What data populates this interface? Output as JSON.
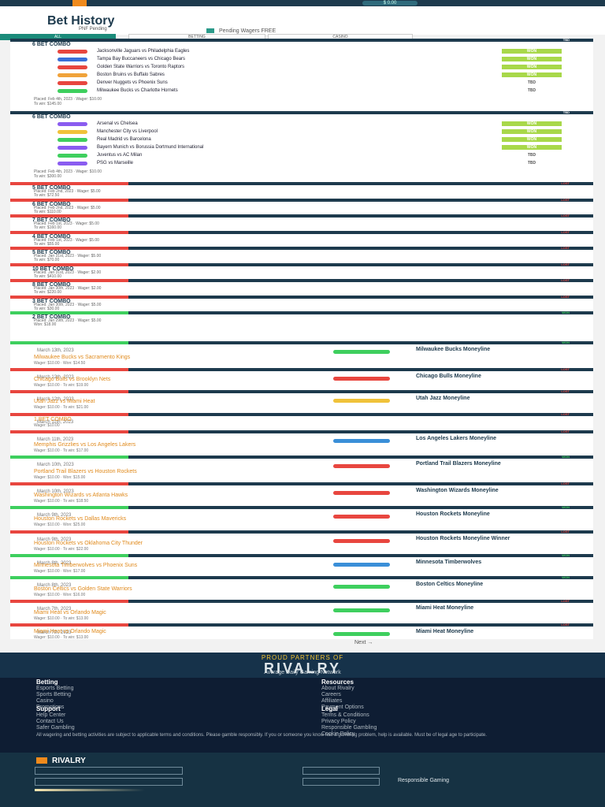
{
  "topbar": {
    "logo": "R",
    "balance": "$ 0.00",
    "colors": [
      "#f08a1c",
      "#d9534f",
      "#e74c3c"
    ]
  },
  "page": {
    "title": "Bet History",
    "pending_label": "PNF Pending",
    "wager_label": "Pending Wagers",
    "wager_value": "FREE"
  },
  "tabs": [
    {
      "label": "ALL"
    },
    {
      "label": "BETTING"
    },
    {
      "label": "CASINO"
    }
  ],
  "parlays": [
    {
      "title": "6 BET COMBO",
      "result": "TBD",
      "state": "pend",
      "legs": [
        {
          "text": "Jacksonville Jaguars vs Philadelphia Eagles",
          "status": "WON",
          "color": "#e8463f"
        },
        {
          "text": "Tampa Bay Buccaneers vs Chicago Bears",
          "status": "WON",
          "color": "#3a6fd8"
        },
        {
          "text": "Golden State Warriors vs Toronto Raptors",
          "status": "WON",
          "color": "#e8463f"
        },
        {
          "text": "Boston Bruins vs Buffalo Sabres",
          "status": "WON",
          "color": "#f0a23a"
        },
        {
          "text": "Denver Nuggets vs Phoenix Suns",
          "status": "TBD",
          "color": "#e8463f"
        },
        {
          "text": "Milwaukee Bucks vs Charlotte Hornets",
          "status": "TBD",
          "color": "#3ecf5e"
        }
      ],
      "meta1": "Placed: Feb 4th, 2023 · Wager: $10.00",
      "meta2": "To win: $145.00"
    },
    {
      "title": "6 BET COMBO",
      "result": "TBD",
      "state": "pend",
      "legs": [
        {
          "text": "Arsenal vs Chelsea",
          "status": "WON",
          "color": "#8a5cf0"
        },
        {
          "text": "Manchester City vs Liverpool",
          "status": "WON",
          "color": "#f0c23a"
        },
        {
          "text": "Real Madrid vs Barcelona",
          "status": "WON",
          "color": "#3ecf5e"
        },
        {
          "text": "Bayern Munich vs Borussia Dortmund International",
          "status": "WON",
          "color": "#8a5cf0"
        },
        {
          "text": "Juventus vs AC Milan",
          "status": "TBD",
          "color": "#3ecf5e"
        },
        {
          "text": "PSG vs Marseille",
          "status": "TBD",
          "color": "#8a5cf0"
        }
      ],
      "meta1": "Placed: Feb 4th, 2023 · Wager: $10.00",
      "meta2": "To win: $300.00"
    }
  ],
  "combos": [
    {
      "title": "5 BET COMBO",
      "result": "LOST",
      "state": "lost",
      "meta1": "Placed: Feb 2nd, 2023 · Wager: $5.00",
      "meta2": "To win: $72.50"
    },
    {
      "title": "6 BET COMBO",
      "result": "LOST",
      "state": "lost",
      "meta1": "Placed: Feb 2nd, 2023 · Wager: $5.00",
      "meta2": "To win: $110.00"
    },
    {
      "title": "7 BET COMBO",
      "result": "LOST",
      "state": "lost",
      "meta1": "Placed: Feb 1st, 2023 · Wager: $5.00",
      "meta2": "To win: $160.00"
    },
    {
      "title": "4 BET COMBO",
      "result": "LOST",
      "state": "lost",
      "meta1": "Placed: Feb 1st, 2023 · Wager: $5.00",
      "meta2": "To win: $55.00"
    },
    {
      "title": "5 BET COMBO",
      "result": "LOST",
      "state": "lost",
      "meta1": "Placed: Jan 31st, 2023 · Wager: $5.00",
      "meta2": "To win: $70.00"
    },
    {
      "title": "10 BET COMBO",
      "result": "LOST",
      "state": "lost",
      "meta1": "Placed: Jan 31st, 2023 · Wager: $2.00",
      "meta2": "To win: $410.00"
    },
    {
      "title": "8 BET COMBO",
      "result": "LOST",
      "state": "lost",
      "meta1": "Placed: Jan 30th, 2023 · Wager: $2.00",
      "meta2": "To win: $220.00"
    },
    {
      "title": "3 BET COMBO",
      "result": "LOST",
      "state": "lost",
      "meta1": "Placed: Jan 30th, 2023 · Wager: $5.00",
      "meta2": "To win: $30.00"
    },
    {
      "title": "2 BET COMBO",
      "result": "WON",
      "state": "won",
      "meta1": "Placed: Jan 29th, 2023 · Wager: $5.00",
      "meta2": "Won: $18.00"
    }
  ],
  "singles": [
    {
      "flag": "WON",
      "state": "won",
      "date": "March 13th, 2023",
      "badge": "#3ecf5e",
      "pick": "Milwaukee Bucks Moneyline",
      "team": "Milwaukee Bucks vs Sacramento Kings",
      "foot": "Wager: $10.00 · Won: $14.50"
    },
    {
      "flag": "LOST",
      "state": "lost",
      "date": "March 12th, 2023",
      "badge": "#e8463f",
      "pick": "Chicago Bulls Moneyline",
      "team": "Chicago Bulls vs Brooklyn Nets",
      "foot": "Wager: $10.00 · To win: $19.00"
    },
    {
      "flag": "LOST",
      "state": "lost",
      "date": "March 12th, 2023",
      "badge": "#f0c23a",
      "pick": "Utah Jazz Moneyline",
      "team": "Utah Jazz vs Miami Heat",
      "foot": "Wager: $10.00 · To win: $21.00"
    },
    {
      "flag": "LOST",
      "state": "lost",
      "date": "March 11th, 2023",
      "badge": "",
      "pick": "",
      "team": "1 BET COMBO",
      "foot": "Wager: $10.00"
    },
    {
      "flag": "LOST",
      "state": "lost",
      "date": "March 11th, 2023",
      "badge": "#3a8fd8",
      "pick": "Los Angeles Lakers Moneyline",
      "team": "Memphis Grizzlies vs Los Angeles Lakers",
      "foot": "Wager: $10.00 · To win: $17.00"
    },
    {
      "flag": "WON",
      "state": "won",
      "date": "March 10th, 2023",
      "badge": "#e8463f",
      "pick": "Portland Trail Blazers Moneyline",
      "team": "Portland Trail Blazers vs Houston Rockets",
      "foot": "Wager: $10.00 · Won: $15.00"
    },
    {
      "flag": "LOST",
      "state": "lost",
      "date": "March 10th, 2023",
      "badge": "#e8463f",
      "pick": "Washington Wizards Moneyline",
      "team": "Washington Wizards vs Atlanta Hawks",
      "foot": "Wager: $10.00 · To win: $18.50"
    },
    {
      "flag": "WON",
      "state": "won",
      "date": "March 9th, 2023",
      "badge": "#e8463f",
      "pick": "Houston Rockets Moneyline",
      "team": "Houston Rockets vs Dallas Mavericks",
      "foot": "Wager: $10.00 · Won: $25.00"
    },
    {
      "flag": "LOST",
      "state": "lost",
      "date": "March 9th, 2023",
      "badge": "#e8463f",
      "pick": "Houston Rockets Moneyline Winner",
      "team": "Houston Rockets vs Oklahoma City Thunder",
      "foot": "Wager: $10.00 · To win: $22.00"
    },
    {
      "flag": "WON",
      "state": "won",
      "date": "March 8th, 2023",
      "badge": "#3a8fd8",
      "pick": "Minnesota Timberwolves",
      "team": "Minnesota Timberwolves vs Phoenix Suns",
      "foot": "Wager: $10.00 · Won: $17.00"
    },
    {
      "flag": "WON",
      "state": "won",
      "date": "March 8th, 2023",
      "badge": "#3ecf5e",
      "pick": "Boston Celtics Moneyline",
      "team": "Boston Celtics vs Golden State Warriors",
      "foot": "Wager: $10.00 · Won: $16.00"
    },
    {
      "flag": "LOST",
      "state": "lost",
      "date": "March 7th, 2023",
      "badge": "#3ecf5e",
      "pick": "Miami Heat Moneyline",
      "team": "Miami Heat vs Orlando Magic",
      "foot": "Wager: $10.00 · To win: $13.00"
    },
    {
      "flag": "LOST",
      "state": "lost",
      "date": "March 7th, 2023",
      "badge": "#3ecf5e",
      "pick": "Miami Heat Moneyline",
      "team": "Miami Heat vs Orlando Magic",
      "foot": "Wager: $10.00 · To win: $13.00"
    }
  ],
  "pagination": {
    "next": "Next →"
  },
  "footer": {
    "proud": "PROUD PARTNERS OF",
    "brand": "RIVALRY",
    "tagline": "Average Daily Gaming Network",
    "col1_title": "Betting",
    "col1": [
      "Esports Betting",
      "Sports Betting",
      "Casino",
      "Promotions"
    ],
    "col2_title": "Support",
    "col2": [
      "Help Center",
      "Contact Us",
      "Safer Gambling"
    ],
    "col3_title": "Resources",
    "col3": [
      "About Rivalry",
      "Careers",
      "Affiliates",
      "Payment Options"
    ],
    "col4_title": "Legal",
    "col4": [
      "Terms & Conditions",
      "Privacy Policy",
      "Responsible Gambling",
      "Cookie Policy"
    ],
    "disclaimer": "All wagering and betting activities are subject to applicable terms and conditions. Please gamble responsibly. If you or someone you know has a gambling problem, help is available. Must be of legal age to participate.",
    "bottom_logo": "RIVALRY",
    "responsible": "Responsible Gaming"
  }
}
